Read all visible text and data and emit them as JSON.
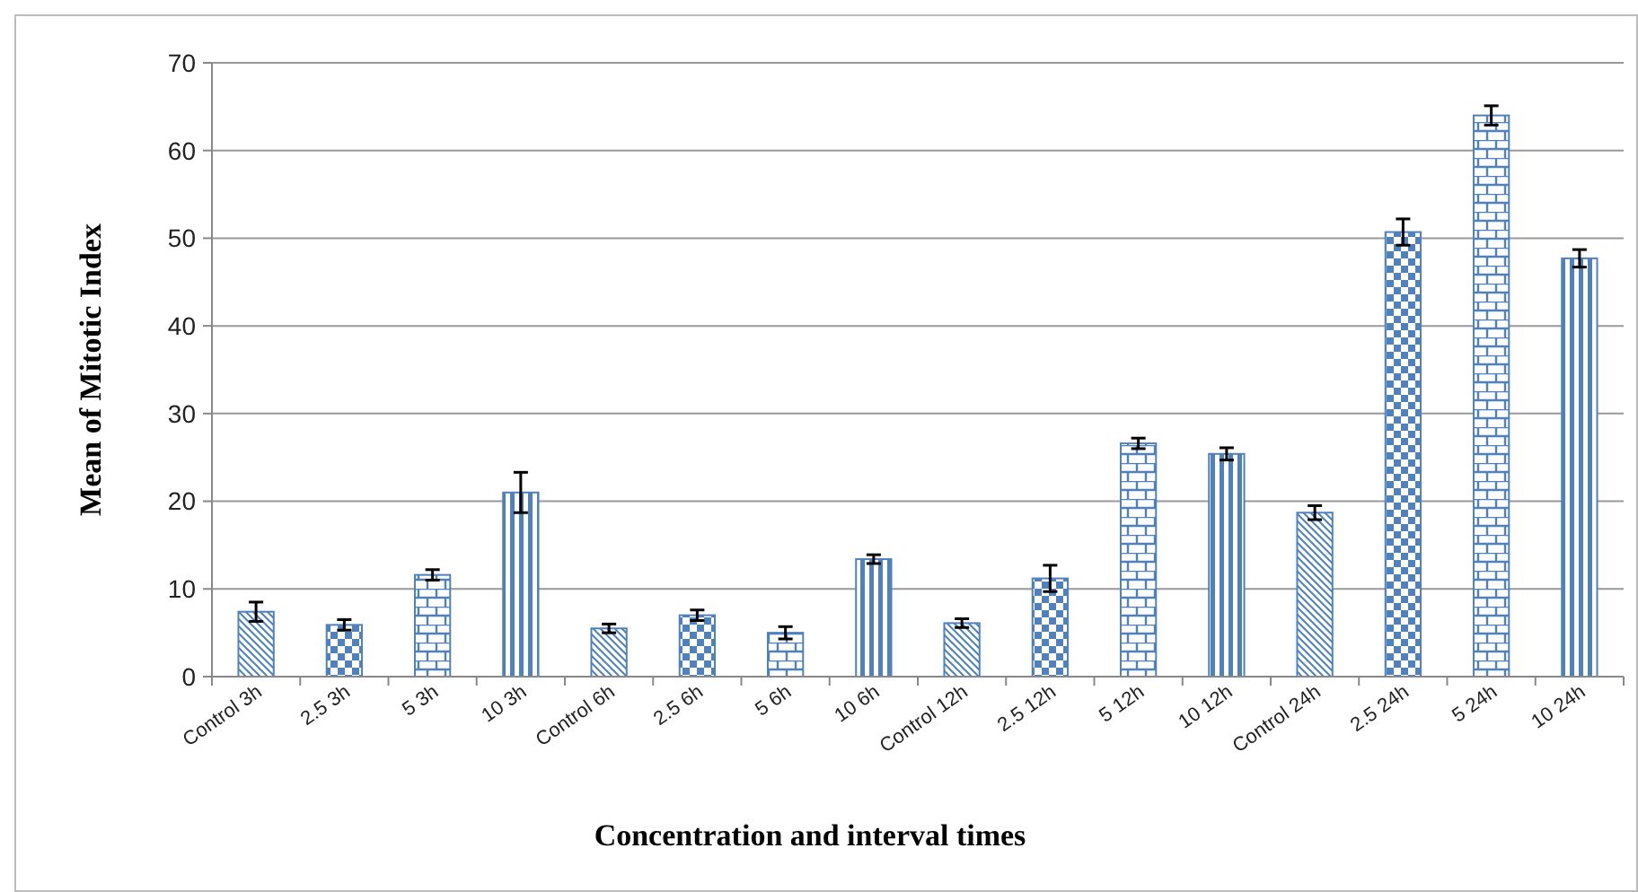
{
  "chart_data": {
    "type": "bar",
    "xlabel": "Concentration and interval times",
    "ylabel": "Mean of Mitotic Index",
    "categories": [
      "Control 3h",
      "2.5 3h",
      "5 3h",
      "10 3h",
      "Control 6h",
      "2.5 6h",
      "5 6h",
      "10 6h",
      "Control 12h",
      "2.5 12h",
      "5 12h",
      "10 12h",
      "Control 24h",
      "2.5 24h",
      "5 24h",
      "10 24h"
    ],
    "values": [
      7.4,
      5.9,
      11.6,
      21.0,
      5.5,
      7.0,
      5.0,
      13.4,
      6.1,
      11.2,
      26.6,
      25.4,
      18.7,
      50.7,
      64.0,
      47.7
    ],
    "errors": [
      1.1,
      0.6,
      0.6,
      2.3,
      0.5,
      0.6,
      0.7,
      0.5,
      0.5,
      1.5,
      0.6,
      0.7,
      0.8,
      1.5,
      1.1,
      1.0
    ],
    "color": "#4f81bd",
    "ylim": [
      0,
      70
    ],
    "yticks": [
      0,
      10,
      20,
      30,
      40,
      50,
      60,
      70
    ],
    "grid": "y"
  }
}
